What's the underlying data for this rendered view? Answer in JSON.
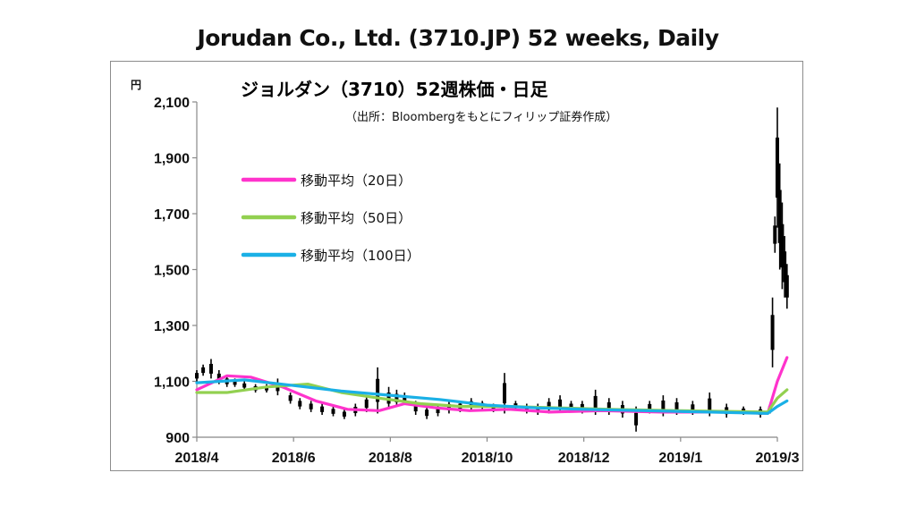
{
  "header": {
    "title": "Jorudan Co., Ltd. (3710.JP) 52 weeks, Daily"
  },
  "chart_data": {
    "type": "line",
    "title": "ジョルダン（3710）52週株価・日足",
    "subtitle": "（出所：Bloombergをもとにフィリップ証券作成）",
    "ylabel": "円",
    "xlabel": "",
    "ylim": [
      900,
      2100
    ],
    "y_ticks": [
      "900",
      "1,100",
      "1,300",
      "1,500",
      "1,700",
      "1,900",
      "2,100"
    ],
    "y_tick_values": [
      900,
      1100,
      1300,
      1500,
      1700,
      1900,
      2100
    ],
    "x_tick_labels": [
      "2018/4",
      "2018/6",
      "2018/8",
      "2018/10",
      "2018/12",
      "2019/1",
      "2019/3"
    ],
    "x_tick_dates": [
      "2018-04-01",
      "2018-06-01",
      "2018-08-01",
      "2018-10-01",
      "2018-12-01",
      "2019-01-20",
      "2019-03-01"
    ],
    "grid": "horizontal",
    "legend_position": "upper-left",
    "series": [
      {
        "name": "移動平均（20日）",
        "color": "#ff33cc",
        "x": [
          "2018-04-01",
          "2018-04-20",
          "2018-05-05",
          "2018-05-25",
          "2018-06-15",
          "2018-07-05",
          "2018-07-25",
          "2018-08-10",
          "2018-08-30",
          "2018-09-20",
          "2018-10-15",
          "2018-11-10",
          "2018-12-10",
          "2019-01-10",
          "2019-02-10",
          "2019-02-25",
          "2019-03-01",
          "2019-03-05"
        ],
        "values": [
          1070,
          1120,
          1115,
          1080,
          1030,
          1000,
          995,
          1020,
          1005,
          995,
          1000,
          990,
          995,
          990,
          990,
          985,
          1100,
          1185
        ]
      },
      {
        "name": "移動平均（50日）",
        "color": "#92d050",
        "x": [
          "2018-04-01",
          "2018-04-20",
          "2018-05-15",
          "2018-06-10",
          "2018-07-01",
          "2018-07-25",
          "2018-08-20",
          "2018-09-15",
          "2018-10-15",
          "2018-11-15",
          "2018-12-15",
          "2019-01-20",
          "2019-02-25",
          "2019-03-01",
          "2019-03-05"
        ],
        "values": [
          1060,
          1060,
          1080,
          1090,
          1060,
          1040,
          1020,
          1010,
          1010,
          1005,
          1000,
          995,
          990,
          1040,
          1070
        ]
      },
      {
        "name": "移動平均（100日）",
        "color": "#1ab0e6",
        "x": [
          "2018-04-01",
          "2018-05-01",
          "2018-06-01",
          "2018-07-01",
          "2018-08-01",
          "2018-09-01",
          "2018-10-01",
          "2018-11-01",
          "2018-12-01",
          "2019-01-01",
          "2019-02-01",
          "2019-02-25",
          "2019-03-01",
          "2019-03-05"
        ],
        "values": [
          1095,
          1105,
          1085,
          1065,
          1050,
          1035,
          1015,
          1005,
          1000,
          995,
          990,
          985,
          1010,
          1030
        ]
      }
    ],
    "price_candles": {
      "name": "株価",
      "color": "#000000",
      "x": [
        "2018-04-01",
        "2018-04-05",
        "2018-04-10",
        "2018-04-15",
        "2018-04-20",
        "2018-04-25",
        "2018-05-01",
        "2018-05-08",
        "2018-05-15",
        "2018-05-22",
        "2018-05-30",
        "2018-06-05",
        "2018-06-12",
        "2018-06-19",
        "2018-06-26",
        "2018-07-03",
        "2018-07-10",
        "2018-07-17",
        "2018-07-24",
        "2018-07-31",
        "2018-08-05",
        "2018-08-10",
        "2018-08-17",
        "2018-08-24",
        "2018-08-31",
        "2018-09-07",
        "2018-09-14",
        "2018-09-21",
        "2018-09-28",
        "2018-10-05",
        "2018-10-12",
        "2018-10-19",
        "2018-10-26",
        "2018-11-02",
        "2018-11-09",
        "2018-11-16",
        "2018-11-23",
        "2018-11-30",
        "2018-12-07",
        "2018-12-14",
        "2018-12-21",
        "2018-12-28",
        "2019-01-04",
        "2019-01-11",
        "2019-01-18",
        "2019-01-25",
        "2019-02-01",
        "2019-02-08",
        "2019-02-15",
        "2019-02-22",
        "2019-02-26",
        "2019-02-27",
        "2019-02-28",
        "2019-03-01",
        "2019-03-02",
        "2019-03-03",
        "2019-03-04",
        "2019-03-05"
      ],
      "low": [
        1100,
        1120,
        1110,
        1090,
        1080,
        1080,
        1070,
        1060,
        1060,
        1050,
        1020,
        1000,
        990,
        980,
        975,
        965,
        975,
        990,
        985,
        1000,
        1010,
        1020,
        980,
        965,
        975,
        985,
        990,
        995,
        1000,
        990,
        985,
        995,
        985,
        980,
        985,
        990,
        990,
        985,
        980,
        980,
        970,
        920,
        985,
        975,
        980,
        980,
        975,
        970,
        980,
        970,
        985,
        1150,
        1560,
        1650,
        1500,
        1430,
        1400,
        1360
      ],
      "high": [
        1140,
        1160,
        1180,
        1140,
        1120,
        1110,
        1100,
        1090,
        1090,
        1110,
        1060,
        1040,
        1030,
        1020,
        1010,
        1000,
        1020,
        1050,
        1150,
        1080,
        1070,
        1060,
        1030,
        1010,
        1020,
        1030,
        1030,
        1040,
        1030,
        1020,
        1130,
        1030,
        1020,
        1020,
        1040,
        1050,
        1030,
        1030,
        1070,
        1040,
        1030,
        1010,
        1030,
        1050,
        1040,
        1030,
        1060,
        1020,
        1010,
        1010,
        1020,
        1400,
        1690,
        2080,
        1880,
        1740,
        1620,
        1520
      ]
    }
  }
}
